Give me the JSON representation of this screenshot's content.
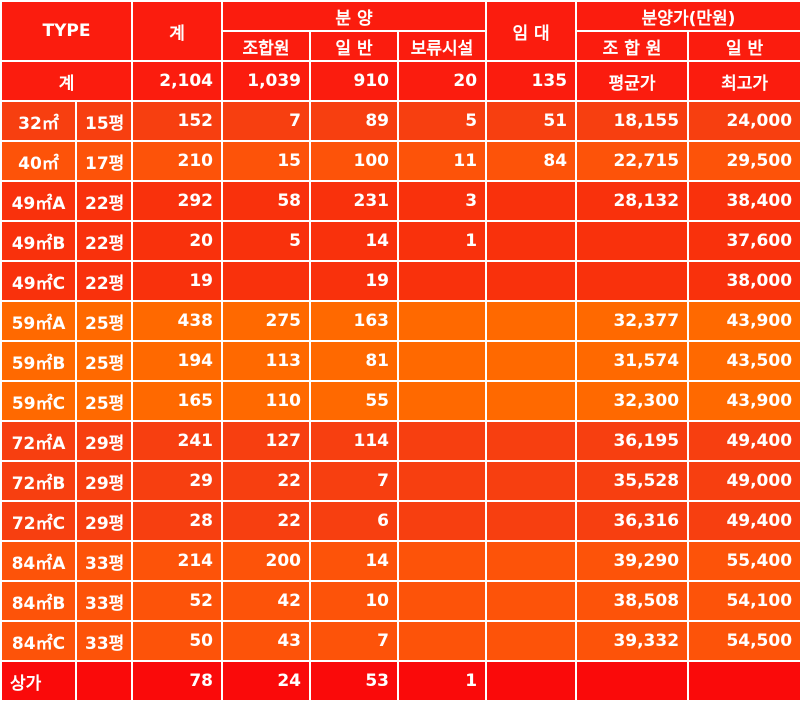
{
  "header": {
    "type": "TYPE",
    "total": "계",
    "sale": "분 양",
    "sale_union": "조합원",
    "sale_general": "일 반",
    "sale_reserved": "보류시설",
    "rent": "임 대",
    "price": "분양가(만원)",
    "price_union": "조 합 원",
    "price_general": "일 반"
  },
  "summary": {
    "label": "계",
    "total": "2,104",
    "union": "1,039",
    "general": "910",
    "reserved": "20",
    "rent": "135",
    "price_union": "평균가",
    "price_general": "최고가"
  },
  "rows": [
    {
      "type": "32㎡",
      "pyeong": "15평",
      "total": "152",
      "union": "7",
      "general": "89",
      "reserved": "5",
      "rent": "51",
      "price_union": "18,155",
      "price_general": "24,000"
    },
    {
      "type": "40㎡",
      "pyeong": "17평",
      "total": "210",
      "union": "15",
      "general": "100",
      "reserved": "11",
      "rent": "84",
      "price_union": "22,715",
      "price_general": "29,500"
    },
    {
      "type": "49㎡A",
      "pyeong": "22평",
      "total": "292",
      "union": "58",
      "general": "231",
      "reserved": "3",
      "rent": "",
      "price_union": "28,132",
      "price_general": "38,400"
    },
    {
      "type": "49㎡B",
      "pyeong": "22평",
      "total": "20",
      "union": "5",
      "general": "14",
      "reserved": "1",
      "rent": "",
      "price_union": "",
      "price_general": "37,600"
    },
    {
      "type": "49㎡C",
      "pyeong": "22평",
      "total": "19",
      "union": "",
      "general": "19",
      "reserved": "",
      "rent": "",
      "price_union": "",
      "price_general": "38,000"
    },
    {
      "type": "59㎡A",
      "pyeong": "25평",
      "total": "438",
      "union": "275",
      "general": "163",
      "reserved": "",
      "rent": "",
      "price_union": "32,377",
      "price_general": "43,900"
    },
    {
      "type": "59㎡B",
      "pyeong": "25평",
      "total": "194",
      "union": "113",
      "general": "81",
      "reserved": "",
      "rent": "",
      "price_union": "31,574",
      "price_general": "43,500"
    },
    {
      "type": "59㎡C",
      "pyeong": "25평",
      "total": "165",
      "union": "110",
      "general": "55",
      "reserved": "",
      "rent": "",
      "price_union": "32,300",
      "price_general": "43,900"
    },
    {
      "type": "72㎡A",
      "pyeong": "29평",
      "total": "241",
      "union": "127",
      "general": "114",
      "reserved": "",
      "rent": "",
      "price_union": "36,195",
      "price_general": "49,400"
    },
    {
      "type": "72㎡B",
      "pyeong": "29평",
      "total": "29",
      "union": "22",
      "general": "7",
      "reserved": "",
      "rent": "",
      "price_union": "35,528",
      "price_general": "49,000"
    },
    {
      "type": "72㎡C",
      "pyeong": "29평",
      "total": "28",
      "union": "22",
      "general": "6",
      "reserved": "",
      "rent": "",
      "price_union": "36,316",
      "price_general": "49,400"
    },
    {
      "type": "84㎡A",
      "pyeong": "33평",
      "total": "214",
      "union": "200",
      "general": "14",
      "reserved": "",
      "rent": "",
      "price_union": "39,290",
      "price_general": "55,400"
    },
    {
      "type": "84㎡B",
      "pyeong": "33평",
      "total": "52",
      "union": "42",
      "general": "10",
      "reserved": "",
      "rent": "",
      "price_union": "38,508",
      "price_general": "54,100"
    },
    {
      "type": "84㎡C",
      "pyeong": "33평",
      "total": "50",
      "union": "43",
      "general": "7",
      "reserved": "",
      "rent": "",
      "price_union": "39,332",
      "price_general": "54,500"
    },
    {
      "type": "상가",
      "pyeong": "",
      "total": "78",
      "union": "24",
      "general": "53",
      "reserved": "1",
      "rent": "",
      "price_union": "",
      "price_general": ""
    }
  ]
}
